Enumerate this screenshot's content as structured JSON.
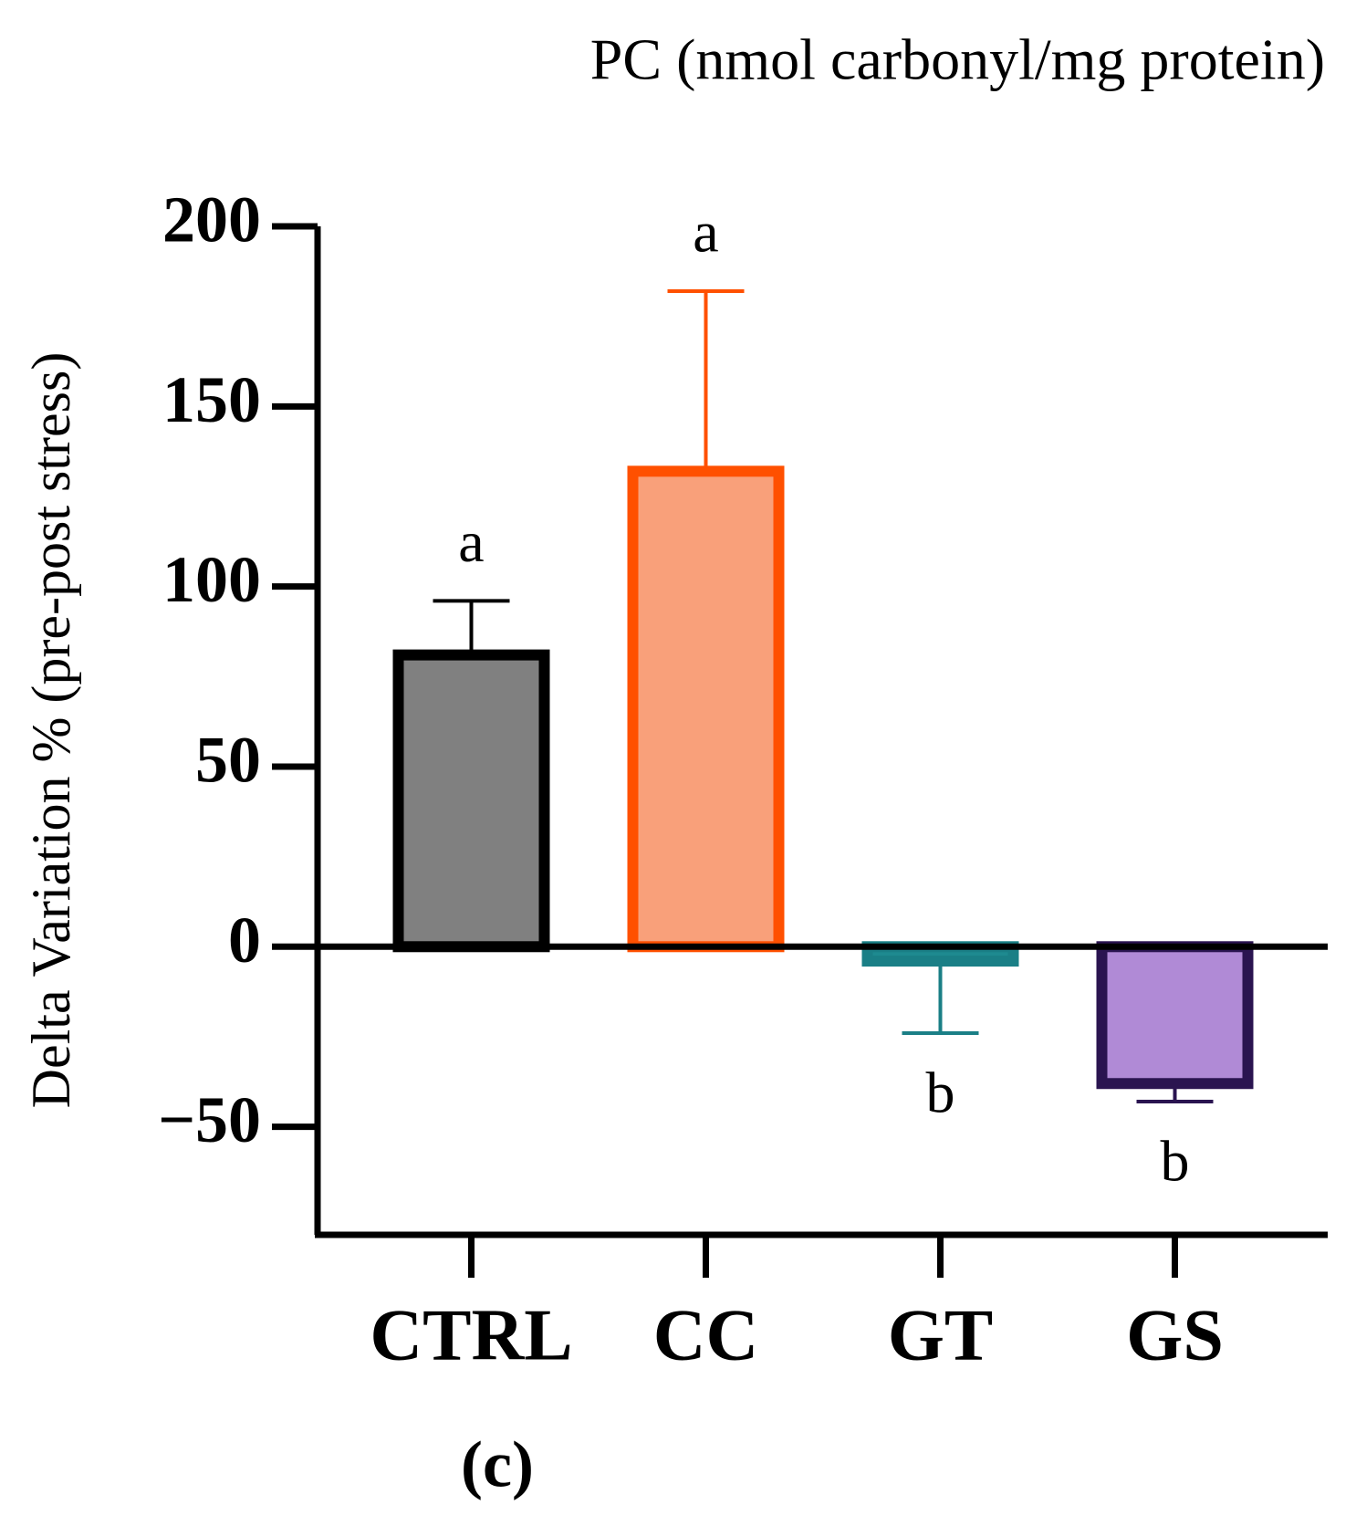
{
  "chart_data": {
    "type": "bar",
    "title": "PC (nmol carbonyl/mg protein)",
    "y_label": "Delta Variation % (pre-post stress)",
    "panel_label": "(c)",
    "categories": [
      "CTRL",
      "CC",
      "GT",
      "GS"
    ],
    "values": [
      81,
      132,
      -4,
      -38
    ],
    "errors": [
      15,
      50,
      20,
      5
    ],
    "annotations": [
      "a",
      "a",
      "b",
      "b"
    ],
    "colors": [
      "#808080",
      "#f9a07a",
      "#1e8a90",
      "#b08ad6"
    ],
    "edge_colors": [
      "#000000",
      "#ff5000",
      "#1a7f86",
      "#2a1450"
    ],
    "ylim": [
      -80,
      200
    ],
    "yticks": [
      {
        "value": -50,
        "label": "−50"
      },
      0,
      50,
      100,
      150,
      200
    ],
    "grid": false
  }
}
